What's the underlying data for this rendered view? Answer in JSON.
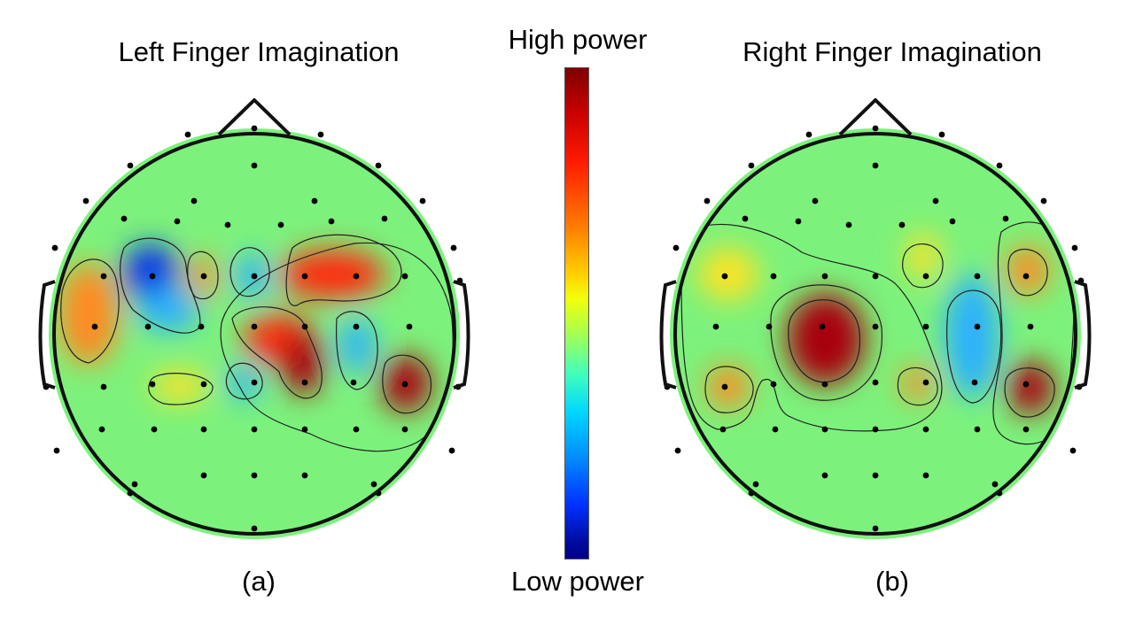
{
  "figure": {
    "panel_a": {
      "title": "Left Finger Imagination",
      "label": "(a)"
    },
    "panel_b": {
      "title": "Right Finger Imagination",
      "label": "(b)"
    },
    "colorbar": {
      "high_label": "High power",
      "low_label": "Low power"
    }
  },
  "colors": {
    "background_level": "#7cf27c",
    "very_high": "#a8000f",
    "high": "#ff2a10",
    "medium_high": "#ff8a20",
    "medium": "#ffe324",
    "low": "#2ab0ff",
    "very_low": "#0a30e8",
    "electrode": "#000000",
    "outline": "#111111"
  }
}
